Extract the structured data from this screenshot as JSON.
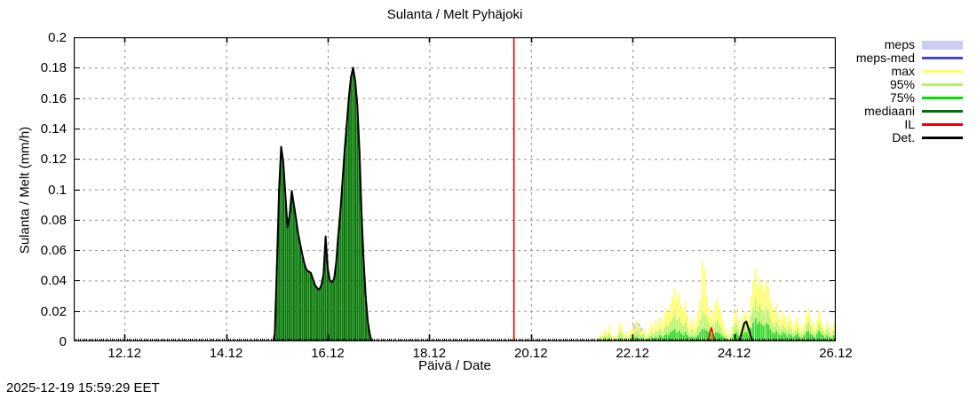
{
  "title": "Sulanta / Melt  Pyhäjoki",
  "timestamp": "2025-12-19 15:59:29 EET",
  "axes": {
    "x_label": "Päivä / Date",
    "y_label": "Sulanta / Melt (mm/h)",
    "x_tick_labels": [
      "12.12",
      "14.12",
      "16.12",
      "18.12",
      "20.12",
      "22.12",
      "24.12",
      "26.12"
    ],
    "x_tick_days": [
      12,
      14,
      16,
      18,
      20,
      22,
      24,
      26
    ],
    "y_tick_labels": [
      "0",
      "0.02",
      "0.04",
      "0.06",
      "0.08",
      "0.1",
      "0.12",
      "0.14",
      "0.16",
      "0.18",
      "0.2"
    ],
    "y_tick_values": [
      0,
      0.02,
      0.04,
      0.06,
      0.08,
      0.1,
      0.12,
      0.14,
      0.16,
      0.18,
      0.2
    ]
  },
  "legend": [
    {
      "label": "meps",
      "color": "#ccccf3",
      "type": "band"
    },
    {
      "label": "meps-med",
      "color": "#4444cc",
      "type": "line"
    },
    {
      "label": "max",
      "color": "#ffff60",
      "type": "line"
    },
    {
      "label": "95%",
      "color": "#b2f26c",
      "type": "line"
    },
    {
      "label": "75%",
      "color": "#00dd00",
      "type": "line"
    },
    {
      "label": "mediaani",
      "color": "#007000",
      "type": "line"
    },
    {
      "label": "IL",
      "color": "#ee0000",
      "type": "line"
    },
    {
      "label": "Det.",
      "color": "#000000",
      "type": "line"
    }
  ],
  "colors": {
    "grid": "#909090",
    "border": "#000000",
    "mediaani_fill": "#087808",
    "det_line": "#000000",
    "max_bar": "#ffff66",
    "p95_bar": "#b8f374",
    "p75_bar": "#33d633",
    "meps_fill": "#ccccf3",
    "il_line": "#ee0000",
    "current_time_line": "#ee0000"
  },
  "chart_data": {
    "type": "bar",
    "title": "Sulanta / Melt  Pyhäjoki",
    "xlabel": "Päivä / Date",
    "ylabel": "Sulanta / Melt (mm/h)",
    "x_unit": "day of December 2025 (decimal)",
    "x_range_days": [
      11,
      26
    ],
    "ylim": [
      0,
      0.2
    ],
    "grid": "dashed",
    "legend_position": "outside-right-top",
    "current_time_day": 19.665,
    "mediaani_det_event": {
      "note": "observed/median melt event, dark green hourly bars with black Det. outline",
      "points": [
        [
          14.958,
          0.005
        ],
        [
          15.0,
          0.05
        ],
        [
          15.042,
          0.1
        ],
        [
          15.083,
          0.128
        ],
        [
          15.125,
          0.118
        ],
        [
          15.167,
          0.096
        ],
        [
          15.208,
          0.075
        ],
        [
          15.25,
          0.083
        ],
        [
          15.292,
          0.099
        ],
        [
          15.333,
          0.09
        ],
        [
          15.375,
          0.081
        ],
        [
          15.417,
          0.071
        ],
        [
          15.458,
          0.064
        ],
        [
          15.5,
          0.057
        ],
        [
          15.542,
          0.051
        ],
        [
          15.583,
          0.047
        ],
        [
          15.625,
          0.046
        ],
        [
          15.667,
          0.045
        ],
        [
          15.708,
          0.041
        ],
        [
          15.75,
          0.037
        ],
        [
          15.792,
          0.035
        ],
        [
          15.833,
          0.034
        ],
        [
          15.875,
          0.037
        ],
        [
          15.917,
          0.044
        ],
        [
          15.958,
          0.069
        ],
        [
          16.0,
          0.048
        ],
        [
          16.042,
          0.04
        ],
        [
          16.083,
          0.039
        ],
        [
          16.125,
          0.041
        ],
        [
          16.167,
          0.052
        ],
        [
          16.208,
          0.07
        ],
        [
          16.25,
          0.086
        ],
        [
          16.292,
          0.106
        ],
        [
          16.333,
          0.126
        ],
        [
          16.375,
          0.143
        ],
        [
          16.417,
          0.161
        ],
        [
          16.458,
          0.174
        ],
        [
          16.5,
          0.18
        ],
        [
          16.542,
          0.171
        ],
        [
          16.583,
          0.155
        ],
        [
          16.625,
          0.125
        ],
        [
          16.667,
          0.083
        ],
        [
          16.708,
          0.052
        ],
        [
          16.75,
          0.028
        ],
        [
          16.792,
          0.012
        ],
        [
          16.833,
          0.004
        ]
      ]
    },
    "forecast": {
      "columns": [
        "day",
        "max",
        "p95",
        "p75"
      ],
      "rows": [
        [
          21.33,
          0.003,
          0.002,
          0.001
        ],
        [
          21.375,
          0.005,
          0.003,
          0.001
        ],
        [
          21.42,
          0.004,
          0.002,
          0.001
        ],
        [
          21.46,
          0.008,
          0.004,
          0.002
        ],
        [
          21.5,
          0.006,
          0.003,
          0.001
        ],
        [
          21.54,
          0.01,
          0.005,
          0.002
        ],
        [
          21.58,
          0.005,
          0.003,
          0.001
        ],
        [
          21.63,
          0.003,
          0.002,
          0.001
        ],
        [
          21.67,
          0.004,
          0.002,
          0.001
        ],
        [
          21.71,
          0.006,
          0.003,
          0.001
        ],
        [
          21.75,
          0.012,
          0.006,
          0.002
        ],
        [
          21.79,
          0.009,
          0.005,
          0.002
        ],
        [
          21.83,
          0.005,
          0.003,
          0.001
        ],
        [
          21.875,
          0.006,
          0.003,
          0.001
        ],
        [
          21.92,
          0.004,
          0.002,
          0.001
        ],
        [
          21.96,
          0.008,
          0.004,
          0.002
        ],
        [
          22.0,
          0.01,
          0.005,
          0.002
        ],
        [
          22.04,
          0.008,
          0.004,
          0.002
        ],
        [
          22.08,
          0.014,
          0.007,
          0.003
        ],
        [
          22.125,
          0.01,
          0.005,
          0.002
        ],
        [
          22.17,
          0.007,
          0.004,
          0.002
        ],
        [
          22.21,
          0.009,
          0.005,
          0.002
        ],
        [
          22.25,
          0.006,
          0.003,
          0.001
        ],
        [
          22.29,
          0.004,
          0.002,
          0.001
        ],
        [
          22.33,
          0.008,
          0.004,
          0.002
        ],
        [
          22.375,
          0.012,
          0.006,
          0.003
        ],
        [
          22.42,
          0.009,
          0.005,
          0.002
        ],
        [
          22.46,
          0.014,
          0.007,
          0.003
        ],
        [
          22.5,
          0.011,
          0.006,
          0.002
        ],
        [
          22.54,
          0.016,
          0.008,
          0.004
        ],
        [
          22.58,
          0.013,
          0.007,
          0.003
        ],
        [
          22.63,
          0.018,
          0.009,
          0.004
        ],
        [
          22.67,
          0.022,
          0.011,
          0.005
        ],
        [
          22.71,
          0.019,
          0.01,
          0.004
        ],
        [
          22.75,
          0.025,
          0.013,
          0.006
        ],
        [
          22.79,
          0.03,
          0.015,
          0.007
        ],
        [
          22.83,
          0.035,
          0.018,
          0.008
        ],
        [
          22.875,
          0.028,
          0.014,
          0.006
        ],
        [
          22.92,
          0.032,
          0.016,
          0.007
        ],
        [
          22.96,
          0.024,
          0.012,
          0.005
        ],
        [
          23.0,
          0.02,
          0.01,
          0.004
        ],
        [
          23.04,
          0.026,
          0.013,
          0.006
        ],
        [
          23.08,
          0.018,
          0.009,
          0.004
        ],
        [
          23.125,
          0.012,
          0.006,
          0.003
        ],
        [
          23.17,
          0.015,
          0.008,
          0.003
        ],
        [
          23.21,
          0.01,
          0.005,
          0.002
        ],
        [
          23.25,
          0.014,
          0.007,
          0.003
        ],
        [
          23.29,
          0.02,
          0.01,
          0.004
        ],
        [
          23.33,
          0.028,
          0.014,
          0.006
        ],
        [
          23.375,
          0.052,
          0.02,
          0.008
        ],
        [
          23.42,
          0.047,
          0.018,
          0.008
        ],
        [
          23.46,
          0.03,
          0.015,
          0.007
        ],
        [
          23.5,
          0.022,
          0.012,
          0.006
        ],
        [
          23.54,
          0.016,
          0.009,
          0.005
        ],
        [
          23.58,
          0.02,
          0.011,
          0.005
        ],
        [
          23.63,
          0.025,
          0.013,
          0.006
        ],
        [
          23.67,
          0.028,
          0.014,
          0.006
        ],
        [
          23.71,
          0.022,
          0.011,
          0.005
        ],
        [
          23.75,
          0.018,
          0.009,
          0.004
        ],
        [
          23.79,
          0.012,
          0.006,
          0.003
        ],
        [
          23.83,
          0.008,
          0.004,
          0.002
        ],
        [
          23.875,
          0.006,
          0.003,
          0.001
        ],
        [
          23.92,
          0.004,
          0.002,
          0.001
        ],
        [
          23.96,
          0.01,
          0.005,
          0.002
        ],
        [
          24.0,
          0.018,
          0.01,
          0.005
        ],
        [
          24.04,
          0.022,
          0.012,
          0.006
        ],
        [
          24.08,
          0.014,
          0.008,
          0.004
        ],
        [
          24.125,
          0.01,
          0.006,
          0.003
        ],
        [
          24.17,
          0.016,
          0.009,
          0.005
        ],
        [
          24.21,
          0.02,
          0.012,
          0.006
        ],
        [
          24.25,
          0.018,
          0.011,
          0.006
        ],
        [
          24.29,
          0.014,
          0.008,
          0.004
        ],
        [
          24.33,
          0.03,
          0.017,
          0.009
        ],
        [
          24.375,
          0.04,
          0.022,
          0.012
        ],
        [
          24.42,
          0.048,
          0.028,
          0.015
        ],
        [
          24.46,
          0.036,
          0.02,
          0.011
        ],
        [
          24.5,
          0.042,
          0.024,
          0.013
        ],
        [
          24.54,
          0.038,
          0.021,
          0.011
        ],
        [
          24.58,
          0.034,
          0.019,
          0.01
        ],
        [
          24.63,
          0.04,
          0.022,
          0.012
        ],
        [
          24.67,
          0.036,
          0.02,
          0.011
        ],
        [
          24.71,
          0.028,
          0.015,
          0.008
        ],
        [
          24.75,
          0.022,
          0.012,
          0.006
        ],
        [
          24.79,
          0.018,
          0.01,
          0.005
        ],
        [
          24.83,
          0.025,
          0.013,
          0.007
        ],
        [
          24.875,
          0.018,
          0.01,
          0.005
        ],
        [
          24.92,
          0.014,
          0.008,
          0.004
        ],
        [
          24.96,
          0.02,
          0.011,
          0.006
        ],
        [
          25.0,
          0.016,
          0.009,
          0.005
        ],
        [
          25.04,
          0.012,
          0.007,
          0.003
        ],
        [
          25.08,
          0.018,
          0.01,
          0.005
        ],
        [
          25.125,
          0.014,
          0.008,
          0.004
        ],
        [
          25.17,
          0.01,
          0.006,
          0.003
        ],
        [
          25.21,
          0.013,
          0.007,
          0.004
        ],
        [
          25.25,
          0.016,
          0.009,
          0.005
        ],
        [
          25.29,
          0.011,
          0.006,
          0.003
        ],
        [
          25.33,
          0.008,
          0.005,
          0.002
        ],
        [
          25.375,
          0.012,
          0.007,
          0.004
        ],
        [
          25.42,
          0.018,
          0.011,
          0.006
        ],
        [
          25.46,
          0.022,
          0.013,
          0.007
        ],
        [
          25.5,
          0.016,
          0.01,
          0.005
        ],
        [
          25.54,
          0.012,
          0.007,
          0.004
        ],
        [
          25.58,
          0.01,
          0.006,
          0.003
        ],
        [
          25.63,
          0.014,
          0.008,
          0.005
        ],
        [
          25.67,
          0.02,
          0.012,
          0.007
        ],
        [
          25.71,
          0.015,
          0.009,
          0.005
        ],
        [
          25.75,
          0.011,
          0.007,
          0.004
        ],
        [
          25.79,
          0.008,
          0.005,
          0.002
        ],
        [
          25.83,
          0.013,
          0.008,
          0.004
        ],
        [
          25.875,
          0.01,
          0.006,
          0.003
        ],
        [
          25.92,
          0.007,
          0.004,
          0.002
        ],
        [
          25.96,
          0.012,
          0.007,
          0.004
        ]
      ]
    },
    "meps_band": [
      [
        22.04,
        0.011
      ],
      [
        22.08,
        0.013
      ],
      [
        22.125,
        0.012
      ],
      [
        22.17,
        0.009
      ]
    ],
    "il_event": [
      [
        23.48,
        0
      ],
      [
        23.55,
        0.009
      ],
      [
        23.62,
        0
      ]
    ],
    "det_event": [
      [
        24.1,
        0
      ],
      [
        24.2,
        0.012
      ],
      [
        24.24,
        0.013
      ],
      [
        24.36,
        0
      ]
    ]
  }
}
